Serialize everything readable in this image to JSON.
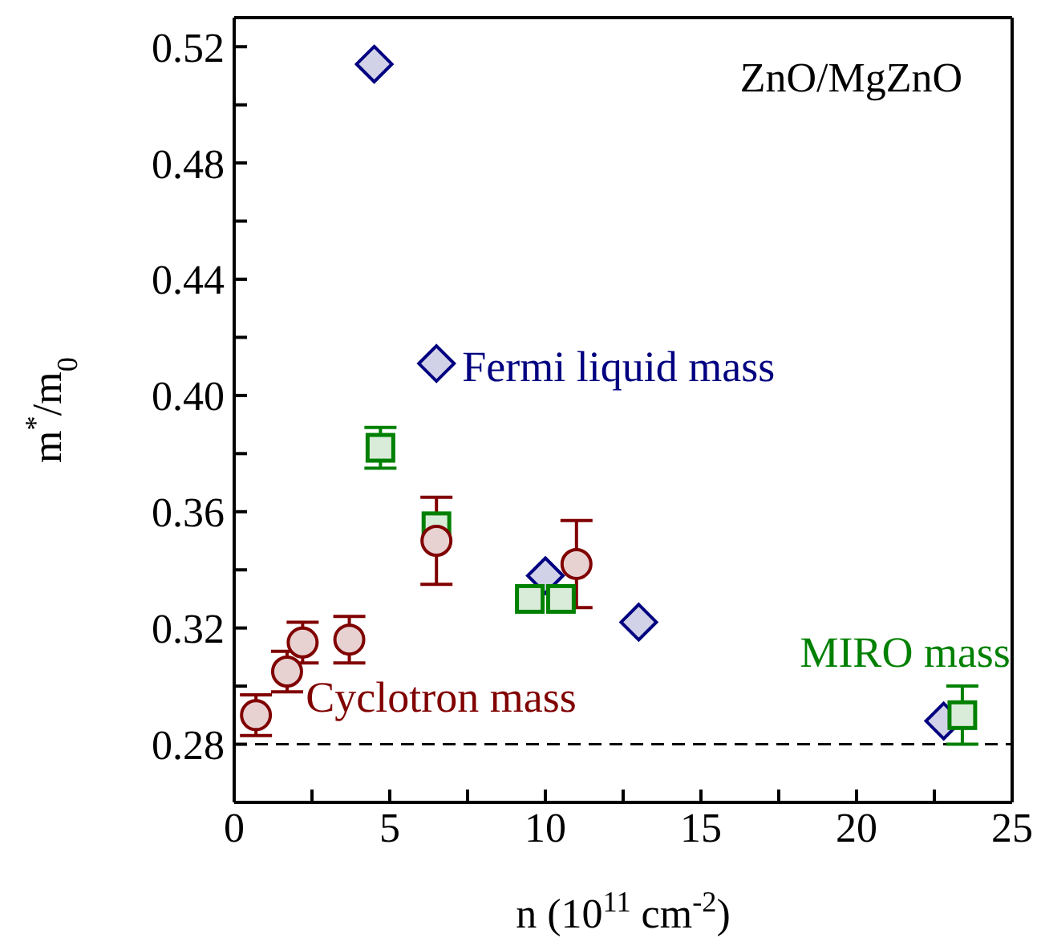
{
  "chart_data": {
    "type": "scatter",
    "xlabel": "n (10$^{11}$ cm$^{-2}$)",
    "ylabel": "m$^{*}$/m$_{0}$",
    "annotations": [
      "ZnO/MgZnO"
    ],
    "xlim": [
      0,
      25
    ],
    "xticks": [
      0,
      {
        "value": 2.5,
        "label": null
      },
      5,
      {
        "value": 7.5,
        "label": null
      },
      10,
      {
        "value": 12.5,
        "label": null
      },
      15,
      {
        "value": 17.5,
        "label": null
      },
      20,
      {
        "value": 22.5,
        "label": null
      },
      25
    ],
    "ylim": [
      0.26,
      0.53
    ],
    "yticks": [
      {
        "value": 0.26,
        "label": null
      },
      0.28,
      {
        "value": 0.3,
        "label": null
      },
      0.32,
      {
        "value": 0.34,
        "label": null
      },
      0.36,
      {
        "value": 0.38,
        "label": null
      },
      {
        "value": 0.4,
        "label": "0.40"
      },
      {
        "value": 0.42,
        "label": null
      },
      0.44,
      {
        "value": 0.46,
        "label": null
      },
      0.48,
      {
        "value": 0.5,
        "label": null
      },
      0.52
    ],
    "ref_lines": [
      {
        "axis": "y",
        "value": 0.28,
        "color": "#000000",
        "line_style": "dashed"
      }
    ],
    "series": [
      {
        "name": "Fermi liquid mass",
        "color": "#000080",
        "marker": "diamond",
        "x": [
          4.5,
          6.5,
          10,
          13,
          22.8
        ],
        "values": [
          0.514,
          0.411,
          0.338,
          0.322,
          0.288
        ]
      },
      {
        "name": "MIRO mass",
        "color": "#008000",
        "marker": "square",
        "x": [
          4.7,
          6.5,
          9.5,
          10.5,
          23.4
        ],
        "values": [
          0.382,
          0.355,
          0.33,
          0.33,
          0.29
        ],
        "errors": [
          0.007,
          null,
          null,
          null,
          0.01
        ]
      },
      {
        "name": "Cyclotron mass",
        "color": "#800000",
        "marker": "circle",
        "x": [
          0.7,
          1.7,
          2.2,
          3.7,
          6.5,
          11
        ],
        "values": [
          0.29,
          0.305,
          0.315,
          0.316,
          0.35,
          0.342
        ],
        "errors": [
          0.007,
          0.007,
          0.007,
          0.008,
          0.015,
          0.015
        ]
      }
    ]
  }
}
